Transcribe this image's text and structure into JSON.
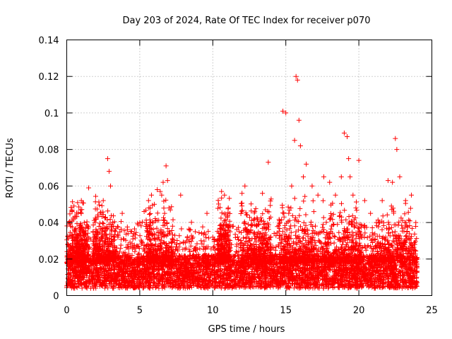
{
  "chart_data": {
    "type": "scatter",
    "title": "Day 203 of 2024, Rate Of TEC Index for receiver p070",
    "xlabel": "GPS time / hours",
    "ylabel": "ROTI / TECUs",
    "xlim": [
      0,
      25
    ],
    "ylim": [
      0,
      0.14
    ],
    "xticks": [
      0,
      5,
      10,
      15,
      20,
      25
    ],
    "xtick_labels": [
      "0",
      "5",
      "10",
      "15",
      "20",
      "25"
    ],
    "yticks": [
      0,
      0.02,
      0.04,
      0.06,
      0.08,
      0.1,
      0.12,
      0.14
    ],
    "ytick_labels": [
      "0",
      "0.02",
      "0.04",
      "0.06",
      "0.08",
      "0.1",
      "0.12",
      "0.14"
    ],
    "grid": true,
    "marker": "+",
    "color": "#ff0000",
    "series": [
      {
        "name": "ROTI",
        "x": [
          0.1,
          0.15,
          0.2,
          0.5,
          0.8,
          1.0,
          1.2,
          1.5,
          1.8,
          2.2,
          2.5,
          2.8,
          2.9,
          3.0,
          3.2,
          3.5,
          3.8,
          4.2,
          4.6,
          5.0,
          5.3,
          5.6,
          5.8,
          6.0,
          6.2,
          6.4,
          6.5,
          6.6,
          6.7,
          6.8,
          6.9,
          7.0,
          7.4,
          7.8,
          8.2,
          8.8,
          9.2,
          9.6,
          10.0,
          10.4,
          10.6,
          10.8,
          11.0,
          11.4,
          11.8,
          12.0,
          12.2,
          12.6,
          13.0,
          13.4,
          13.6,
          13.8,
          14.2,
          14.6,
          14.8,
          15.0,
          15.2,
          15.4,
          15.6,
          15.7,
          15.8,
          15.9,
          16.0,
          16.2,
          16.4,
          16.8,
          17.2,
          17.6,
          18.0,
          18.4,
          18.8,
          19.0,
          19.2,
          19.3,
          19.4,
          19.6,
          19.8,
          20.0,
          20.4,
          20.8,
          21.2,
          21.6,
          22.0,
          22.3,
          22.5,
          22.6,
          22.8,
          23.2,
          23.6,
          23.9
        ],
        "y": [
          0.028,
          0.04,
          0.025,
          0.02,
          0.024,
          0.052,
          0.04,
          0.059,
          0.035,
          0.03,
          0.052,
          0.075,
          0.068,
          0.06,
          0.038,
          0.032,
          0.045,
          0.028,
          0.034,
          0.04,
          0.046,
          0.052,
          0.055,
          0.05,
          0.058,
          0.057,
          0.055,
          0.062,
          0.045,
          0.071,
          0.063,
          0.048,
          0.033,
          0.055,
          0.03,
          0.035,
          0.03,
          0.045,
          0.032,
          0.028,
          0.057,
          0.055,
          0.043,
          0.038,
          0.035,
          0.056,
          0.06,
          0.036,
          0.038,
          0.056,
          0.047,
          0.073,
          0.034,
          0.04,
          0.101,
          0.1,
          0.045,
          0.06,
          0.085,
          0.12,
          0.118,
          0.096,
          0.082,
          0.065,
          0.072,
          0.06,
          0.055,
          0.065,
          0.062,
          0.055,
          0.065,
          0.089,
          0.087,
          0.075,
          0.065,
          0.055,
          0.048,
          0.074,
          0.052,
          0.045,
          0.04,
          0.052,
          0.063,
          0.062,
          0.086,
          0.08,
          0.065,
          0.052,
          0.055,
          0.04
        ]
      }
    ]
  }
}
